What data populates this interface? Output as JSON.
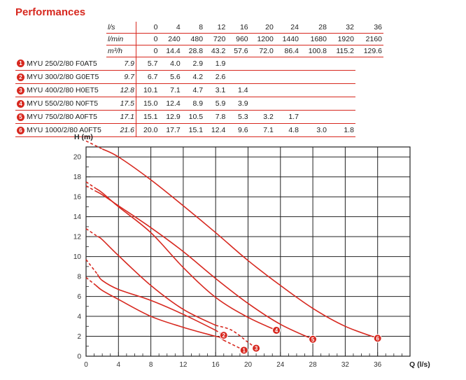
{
  "title": "Performances",
  "table": {
    "units": [
      "l/s",
      "l/min",
      "m³/h"
    ],
    "flow_rows": [
      [
        "0",
        "4",
        "8",
        "12",
        "16",
        "20",
        "24",
        "28",
        "32",
        "36"
      ],
      [
        "0",
        "240",
        "480",
        "720",
        "960",
        "1200",
        "1440",
        "1680",
        "1920",
        "2160"
      ],
      [
        "0",
        "14.4",
        "28.8",
        "43.2",
        "57.6",
        "72.0",
        "86.4",
        "100.8",
        "115.2",
        "129.6"
      ]
    ],
    "models": [
      {
        "num": "1",
        "name": "MYU 250/2/80 F0AT5",
        "values": [
          "7.9",
          "5.7",
          "4.0",
          "2.9",
          "1.9",
          "",
          "",
          "",
          "",
          ""
        ]
      },
      {
        "num": "2",
        "name": "MYU 300/2/80 G0ET5",
        "values": [
          "9.7",
          "6.7",
          "5.6",
          "4.2",
          "2.6",
          "",
          "",
          "",
          "",
          ""
        ]
      },
      {
        "num": "3",
        "name": "MYU 400/2/80 H0ET5",
        "values": [
          "12.8",
          "10.1",
          "7.1",
          "4.7",
          "3.1",
          "1.4",
          "",
          "",
          "",
          ""
        ]
      },
      {
        "num": "4",
        "name": "MYU 550/2/80 N0FT5",
        "values": [
          "17.5",
          "15.0",
          "12.4",
          "8.9",
          "5.9",
          "3.9",
          "",
          "",
          "",
          ""
        ]
      },
      {
        "num": "5",
        "name": "MYU 750/2/80 A0FT5",
        "values": [
          "17.1",
          "15.1",
          "12.9",
          "10.5",
          "7.8",
          "5.3",
          "3.2",
          "1.7",
          "",
          ""
        ]
      },
      {
        "num": "6",
        "name": "MYU 1000/2/80 A0FT5",
        "values": [
          "21.6",
          "20.0",
          "17.7",
          "15.1",
          "12.4",
          "9.6",
          "7.1",
          "4.8",
          "3.0",
          "1.8"
        ]
      }
    ]
  },
  "chart_data": {
    "type": "line",
    "ylabel": "H (m)",
    "xlabel": "Q (l/s)",
    "xlim": [
      0,
      40
    ],
    "ylim": [
      0,
      21
    ],
    "xticks": [
      0,
      4,
      8,
      12,
      16,
      20,
      24,
      28,
      32,
      36
    ],
    "yticks": [
      0,
      2,
      4,
      6,
      8,
      10,
      12,
      14,
      16,
      18,
      20
    ],
    "grid": true,
    "color": "#d7281f",
    "series": [
      {
        "label": "1",
        "x": [
          0,
          2,
          4,
          8,
          12,
          15.5,
          16.5,
          17,
          18,
          19.5
        ],
        "y": [
          7.9,
          6.6,
          5.7,
          4.0,
          2.9,
          2.1,
          1.9,
          1.6,
          1.2,
          0.6
        ],
        "dashed_from": 0.2,
        "dashed_to": 17
      },
      {
        "label": "2",
        "x": [
          0,
          2,
          4,
          8,
          12,
          16,
          17
        ],
        "y": [
          9.7,
          7.6,
          6.7,
          5.6,
          4.2,
          2.6,
          2.1
        ],
        "dashed_from": 0.4,
        "dashed_to": 16
      },
      {
        "label": "3",
        "x": [
          0,
          2,
          4,
          8,
          12,
          16,
          18,
          20,
          21
        ],
        "y": [
          12.8,
          11.7,
          10.1,
          7.1,
          4.7,
          3.1,
          2.6,
          1.4,
          0.8
        ],
        "dashed_from": 0.4,
        "dashed_to": 16
      },
      {
        "label": "4",
        "x": [
          0,
          2,
          4,
          8,
          12,
          16,
          20,
          23.5
        ],
        "y": [
          17.5,
          16.4,
          15.0,
          12.4,
          8.9,
          5.9,
          3.9,
          2.6
        ],
        "dashed_from": 0.2
      },
      {
        "label": "5",
        "x": [
          0,
          2,
          4,
          8,
          12,
          16,
          20,
          24,
          28
        ],
        "y": [
          17.1,
          16.2,
          15.1,
          12.9,
          10.5,
          7.8,
          5.3,
          3.2,
          1.7
        ],
        "dashed_from": 0.1
      },
      {
        "label": "6",
        "x": [
          0,
          2,
          4,
          8,
          12,
          16,
          20,
          24,
          28,
          32,
          36
        ],
        "y": [
          21.6,
          20.8,
          20.0,
          17.7,
          15.1,
          12.4,
          9.6,
          7.1,
          4.8,
          3.0,
          1.8
        ],
        "dashed_from": 0.2,
        "dashed_to": 2
      }
    ]
  }
}
